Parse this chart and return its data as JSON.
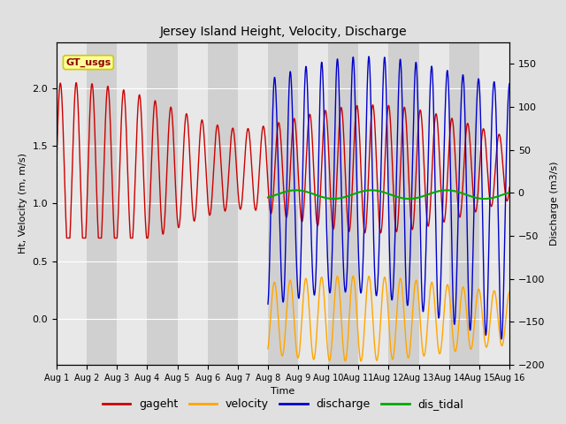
{
  "title": "Jersey Island Height, Velocity, Discharge",
  "xlabel": "Time",
  "ylabel_left": "Ht, Velocity (m, m/s)",
  "ylabel_right": "Discharge (m3/s)",
  "ylim_left": [
    -0.4,
    2.4
  ],
  "ylim_right": [
    -200,
    175
  ],
  "annotation_text": "GT_usgs",
  "annotation_bg": "#ffff99",
  "annotation_border": "#cccc00",
  "colors": {
    "gageht": "#cc0000",
    "velocity": "#ffa500",
    "discharge": "#0000cc",
    "dis_tidal": "#00aa00"
  },
  "bg_light": "#e8e8e8",
  "bg_dark": "#d0d0d0",
  "fig_bg": "#e0e0e0",
  "grid_color": "#ffffff",
  "title_fontsize": 10,
  "label_fontsize": 8,
  "tick_fontsize": 8,
  "legend_fontsize": 9
}
